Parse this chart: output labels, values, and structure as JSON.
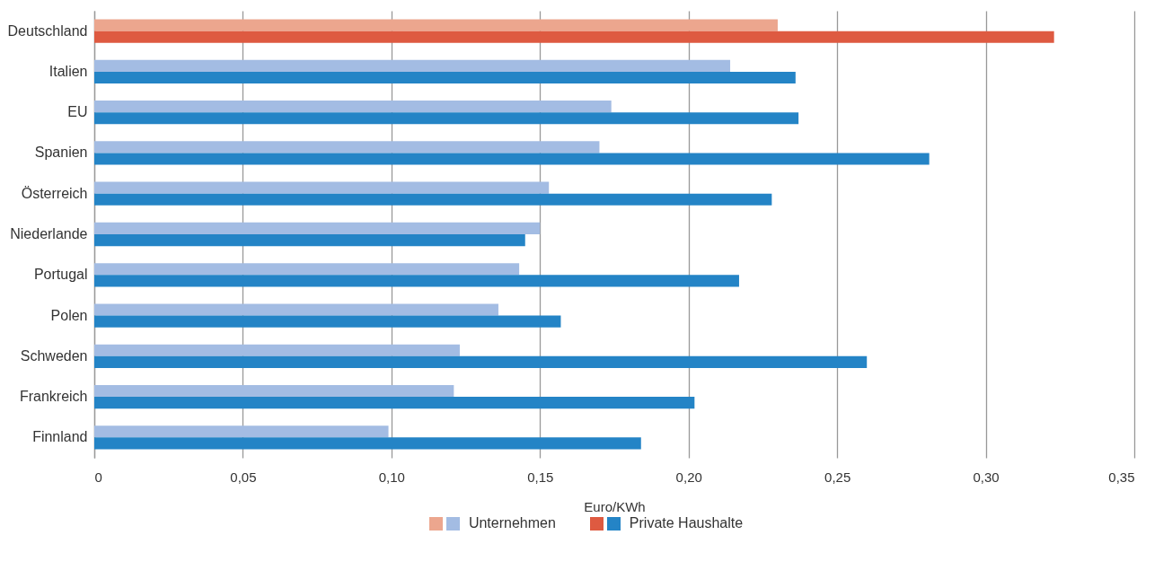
{
  "chart_data": {
    "type": "bar",
    "orientation": "horizontal",
    "xlabel": "Euro/KWh",
    "categories": [
      "Deutschland",
      "Italien",
      "EU",
      "Spanien",
      "Österreich",
      "Niederlande",
      "Portugal",
      "Polen",
      "Schweden",
      "Frankreich",
      "Finnland"
    ],
    "series": [
      {
        "name": "Unternehmen",
        "color": "#a3bce3",
        "colors": [
          "#eca68e",
          "#a3bce3",
          "#a3bce3",
          "#a3bce3",
          "#a3bce3",
          "#a3bce3",
          "#a3bce3",
          "#a3bce3",
          "#a3bce3",
          "#a3bce3",
          "#a3bce3"
        ],
        "values": [
          0.23,
          0.214,
          0.174,
          0.17,
          0.153,
          0.15,
          0.143,
          0.136,
          0.123,
          0.121,
          0.099
        ]
      },
      {
        "name": "Private Haushalte",
        "color": "#2484c6",
        "colors": [
          "#de5a41",
          "#2484c6",
          "#2484c6",
          "#2484c6",
          "#2484c6",
          "#2484c6",
          "#2484c6",
          "#2484c6",
          "#2484c6",
          "#2484c6",
          "#2484c6"
        ],
        "values": [
          0.323,
          0.236,
          0.237,
          0.281,
          0.228,
          0.145,
          0.217,
          0.157,
          0.26,
          0.202,
          0.184
        ]
      }
    ],
    "xlim": [
      0,
      0.35
    ],
    "xticks": [
      0,
      {
        "value": 0.05,
        "label": "0,05"
      },
      {
        "value": 0.1,
        "label": "0,10"
      },
      {
        "value": 0.15,
        "label": "0,15"
      },
      {
        "value": 0.2,
        "label": "0,20"
      },
      {
        "value": 0.25,
        "label": "0,25"
      },
      {
        "value": 0.3,
        "label": "0,30"
      },
      {
        "value": 0.35,
        "label": "0,35"
      }
    ],
    "grid": "x",
    "legend": "bottom"
  }
}
